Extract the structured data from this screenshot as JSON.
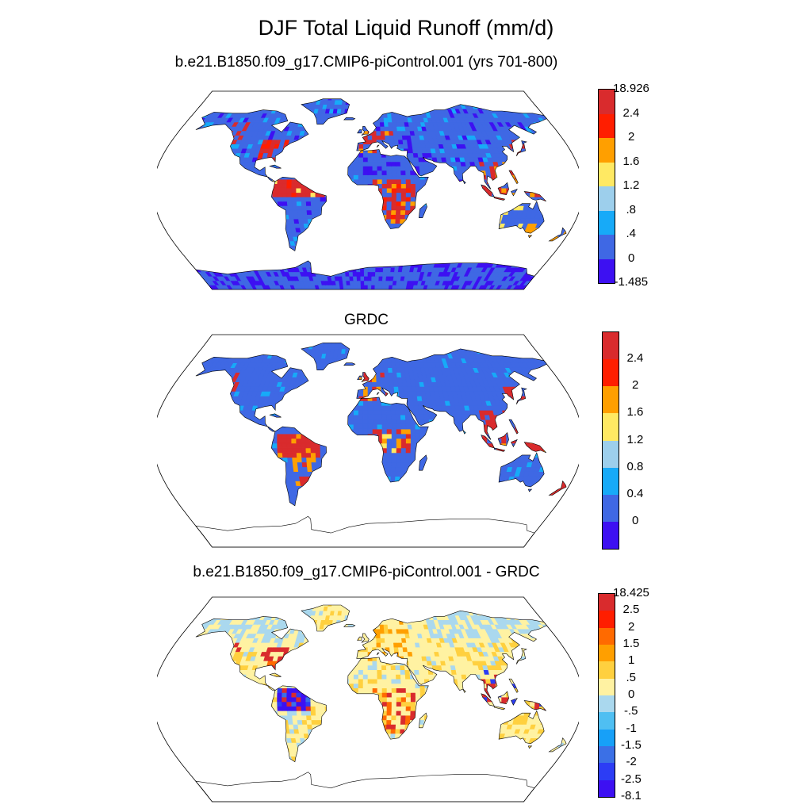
{
  "page": {
    "title": "DJF Total Liquid Runoff (mm/d)"
  },
  "panels": [
    {
      "title": "b.e21.B1850.f09_g17.CMIP6-piControl.001 (yrs 701-800)",
      "scheme": "model",
      "antarctica": "filled",
      "colorbar": {
        "colors": [
          "#3d10f2",
          "#3f68e4",
          "#17aaf8",
          "#9dcfec",
          "#ffe963",
          "#ff9f00",
          "#ff1e00",
          "#d92b2d"
        ],
        "labels": [
          "-1.485",
          "0",
          ".4",
          ".8",
          "1.2",
          "1.6",
          "2",
          "2.4",
          "18.926"
        ]
      }
    },
    {
      "title": "GRDC",
      "scheme": "grdc",
      "antarctica": "outline",
      "colorbar": {
        "colors": [
          "#3d10f2",
          "#3f68e4",
          "#17aaf8",
          "#9dcfec",
          "#ffe963",
          "#ff9f00",
          "#ff1e00",
          "#d92b2d"
        ],
        "labels": [
          "0",
          "0.4",
          "0.8",
          "1.2",
          "1.6",
          "2",
          "2.4"
        ]
      }
    },
    {
      "title": "b.e21.B1850.f09_g17.CMIP6-piControl.001 - GRDC",
      "scheme": "diff",
      "antarctica": "outline",
      "colorbar": {
        "colors": [
          "#3d10f2",
          "#2c3df5",
          "#3b70e6",
          "#17a0f8",
          "#4fbff2",
          "#aad8ee",
          "#fff2a2",
          "#ffd03f",
          "#ff9f00",
          "#ff6a00",
          "#ff1e00",
          "#d92b2d"
        ],
        "labels": [
          "-8.1",
          "-2.5",
          "-2",
          "-1.5",
          "-1",
          "-.5",
          "0",
          ".5",
          "1",
          "1.5",
          "2",
          "2.5",
          "18.425"
        ]
      }
    }
  ]
}
